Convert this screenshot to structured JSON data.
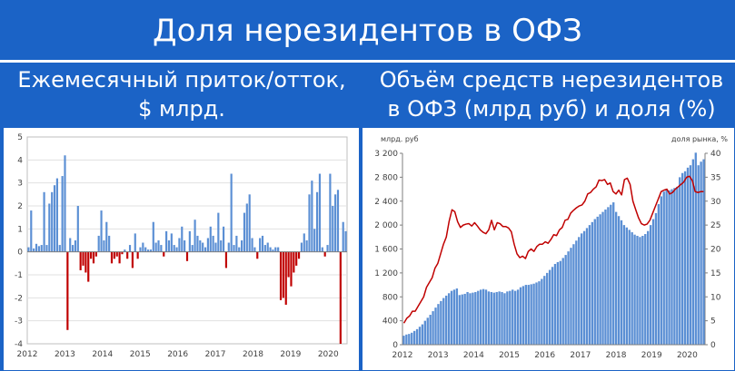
{
  "header": {
    "title": "Доля нерезидентов в ОФЗ",
    "left_subtitle_line1": "Ежемесячный приток/отток,",
    "left_subtitle_line2": "$ млрд.",
    "right_subtitle_line1": "Объём средств нерезидентов",
    "right_subtitle_line2": "в ОФЗ (млрд руб) и доля (%)"
  },
  "colors": {
    "background": "#1b63c6",
    "bar_positive": "#5b8fd4",
    "bar_negative": "#c00000",
    "line": "#c00000",
    "bar_volume": "#5b8fd4"
  },
  "chart_data": [
    {
      "type": "bar",
      "title": "Ежемесячный приток/отток, $ млрд.",
      "x_tick_labels": [
        "2012",
        "2013",
        "2014",
        "2015",
        "2016",
        "2017",
        "2018",
        "2019",
        "2020"
      ],
      "y_tick_labels": [
        "5",
        "4",
        "3",
        "2",
        "1",
        "0",
        "-1",
        "-2",
        "-3",
        "-4"
      ],
      "ylim": [
        -4,
        5
      ],
      "grid": true,
      "series": [
        {
          "values": [
            0.2,
            1.8,
            0.15,
            0.35,
            0.25,
            0.3,
            2.6,
            0.3,
            2.1,
            2.6,
            2.9,
            3.2,
            0.3,
            3.3,
            4.2,
            -3.4,
            0.6,
            0.3,
            0.5,
            2.0,
            -0.8,
            -0.6,
            -0.9,
            -1.3,
            -0.3,
            -0.5,
            -0.2,
            0.7,
            1.8,
            0.5,
            1.3,
            0.7,
            -0.5,
            -0.3,
            -0.2,
            -0.5,
            -0.1,
            0.1,
            -0.3,
            0.3,
            -0.7,
            0.8,
            -0.3,
            0.2,
            0.4,
            0.2,
            0.1,
            0.1,
            1.3,
            0.4,
            0.5,
            0.3,
            -0.2,
            0.9,
            0.5,
            0.8,
            0.3,
            0.2,
            0.6,
            1.1,
            0.5,
            -0.4,
            0.9,
            0.3,
            1.4,
            0.7,
            0.5,
            0.4,
            0.2,
            0.6,
            1.1,
            0.7,
            0.4,
            1.7,
            0.5,
            1.1,
            -0.7,
            0.4,
            3.4,
            0.3,
            0.7,
            0.2,
            0.5,
            1.7,
            2.1,
            2.5,
            0.6,
            0.2,
            -0.3,
            0.6,
            0.7,
            0.3,
            0.4,
            0.2,
            0.1,
            0.2,
            0.2,
            -2.1,
            -2.0,
            -2.3,
            -1.1,
            -1.5,
            -0.9,
            -0.6,
            -0.3,
            0.4,
            0.8,
            0.5,
            2.5,
            3.1,
            1.0,
            2.6,
            3.4,
            0.2,
            -0.2,
            0.3,
            3.4,
            2.0,
            2.5,
            2.7,
            -4.0,
            1.3,
            0.9
          ]
        }
      ]
    },
    {
      "type": "bar",
      "title": "Объём средств нерезидентов в ОФЗ (млрд руб) и доля (%)",
      "ylabel": "млрд. руб",
      "y2label": "доля рынка, %",
      "x_tick_labels": [
        "2012",
        "2013",
        "2014",
        "2015",
        "2016",
        "2017",
        "2018",
        "2019",
        "2020"
      ],
      "y_tick_labels": [
        "0",
        "400",
        "800",
        "1 200",
        "1 600",
        "2 000",
        "2 400",
        "2 800",
        "3 200"
      ],
      "y2_tick_labels": [
        "0",
        "5",
        "10",
        "15",
        "20",
        "25",
        "30",
        "35",
        "40"
      ],
      "ylim": [
        0,
        3200
      ],
      "y2lim": [
        0,
        40
      ],
      "grid": false,
      "series": [
        {
          "kind": "bar",
          "values": [
            150,
            170,
            180,
            200,
            230,
            260,
            300,
            340,
            400,
            450,
            500,
            560,
            620,
            680,
            730,
            780,
            820,
            860,
            900,
            920,
            940,
            830,
            840,
            850,
            880,
            860,
            870,
            880,
            900,
            920,
            930,
            920,
            890,
            880,
            870,
            880,
            890,
            880,
            860,
            890,
            900,
            920,
            900,
            920,
            960,
            980,
            1000,
            1000,
            1010,
            1020,
            1040,
            1060,
            1100,
            1150,
            1200,
            1250,
            1300,
            1350,
            1380,
            1400,
            1450,
            1500,
            1560,
            1620,
            1680,
            1740,
            1800,
            1860,
            1900,
            1950,
            2000,
            2050,
            2100,
            2140,
            2180,
            2220,
            2260,
            2300,
            2340,
            2380,
            2220,
            2150,
            2080,
            2000,
            1960,
            1920,
            1880,
            1840,
            1820,
            1800,
            1820,
            1850,
            1900,
            2000,
            2100,
            2200,
            2350,
            2480,
            2560,
            2600,
            2580,
            2600,
            2620,
            2640,
            2800,
            2870,
            2900,
            2960,
            3000,
            3100,
            3210,
            3000,
            3060,
            3100
          ]
        },
        {
          "kind": "line",
          "axis": "right",
          "values": [
            4.5,
            5.5,
            6,
            7,
            7,
            8,
            9,
            10,
            12,
            13,
            14,
            16,
            17,
            19,
            21,
            22.5,
            25.8,
            28.2,
            27.8,
            25.7,
            24.5,
            25,
            25.2,
            25.3,
            24.8,
            25.5,
            24.8,
            24,
            23.5,
            23.2,
            24,
            26,
            24,
            25.5,
            25.3,
            24.7,
            24.7,
            24.4,
            23.6,
            21,
            19,
            18.2,
            18.5,
            18,
            19.5,
            20,
            19.5,
            20.5,
            21,
            21,
            21.5,
            21.2,
            22,
            23,
            22.8,
            24,
            24.5,
            26,
            26.2,
            27.5,
            28.1,
            28.6,
            29,
            29.2,
            30,
            31.5,
            31.8,
            32.5,
            33,
            34.4,
            34.3,
            34.5,
            33.5,
            33.8,
            32,
            31.5,
            32.3,
            31.3,
            34.5,
            34.8,
            33.5,
            30,
            28.2,
            26.5,
            25.3,
            25,
            25.2,
            26,
            27.5,
            29,
            30.5,
            32,
            32.3,
            32.5,
            31.5,
            31.8,
            32.5,
            33,
            33.5,
            34,
            35,
            35.2,
            34.3,
            32,
            31.8,
            32,
            32
          ]
        }
      ]
    }
  ]
}
